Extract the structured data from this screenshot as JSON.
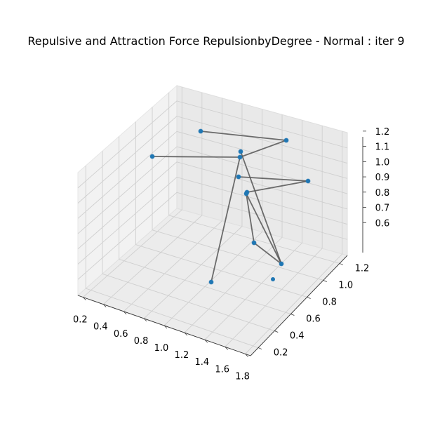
{
  "chart_data": {
    "type": "scatter",
    "projection": "3d",
    "title": "Repulsive and Attraction Force RepulsionbyDegree - Normal : iter 9",
    "xlabel": "",
    "ylabel": "",
    "zlabel": "",
    "grid": true,
    "x_ticks": [
      "0.2",
      "0.4",
      "0.6",
      "0.8",
      "1.0",
      "1.2",
      "1.4",
      "1.6",
      "1.8"
    ],
    "y_ticks": [
      "0.2",
      "0.4",
      "0.6",
      "0.8",
      "1.0",
      "1.2"
    ],
    "z_ticks": [
      "0.6",
      "0.7",
      "0.8",
      "0.9",
      "1.0",
      "1.1",
      "1.2"
    ],
    "point_color": "#1f77b4",
    "edge_color": "#555555",
    "nodes": [
      {
        "id": "n0"
      },
      {
        "id": "n1"
      },
      {
        "id": "n2"
      },
      {
        "id": "n3"
      },
      {
        "id": "n4"
      },
      {
        "id": "n5"
      },
      {
        "id": "n6"
      },
      {
        "id": "n7"
      },
      {
        "id": "n8"
      },
      {
        "id": "n9"
      },
      {
        "id": "n10"
      },
      {
        "id": "n11"
      }
    ],
    "edges": [
      [
        "n0",
        "n1"
      ],
      [
        "n1",
        "n4"
      ],
      [
        "n4",
        "n2"
      ],
      [
        "n4",
        "n9"
      ],
      [
        "n5",
        "n6"
      ],
      [
        "n6",
        "n7"
      ],
      [
        "n7",
        "n8"
      ],
      [
        "n8",
        "n10"
      ],
      [
        "n8",
        "n11"
      ],
      [
        "n3",
        "n10"
      ],
      [
        "n10",
        "n11"
      ]
    ]
  }
}
